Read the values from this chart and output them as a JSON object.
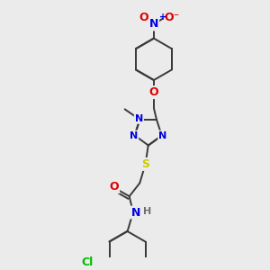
{
  "background_color": "#ebebeb",
  "bond_color": "#3a3a3a",
  "bond_width": 1.4,
  "atom_colors": {
    "N": "#0000e0",
    "O": "#e00000",
    "S": "#cccc00",
    "Cl": "#00bb00",
    "C": "#3a3a3a",
    "H": "#707070"
  },
  "font_size": 8.0
}
